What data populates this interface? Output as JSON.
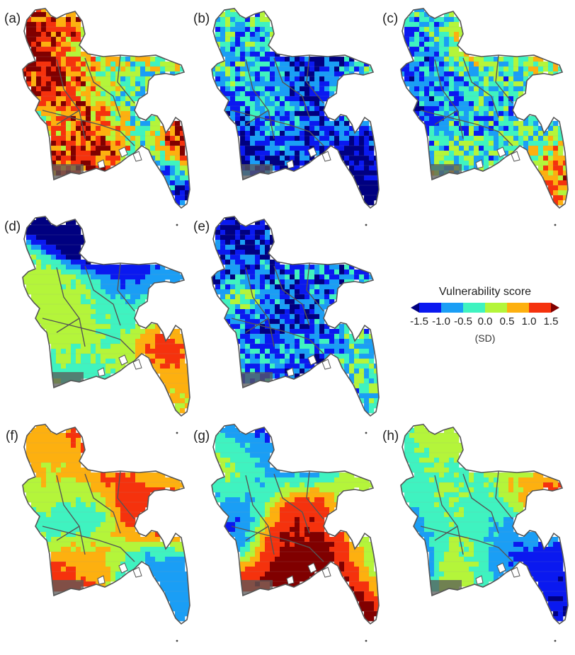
{
  "panels": [
    {
      "label": "(a)",
      "seed": 11,
      "mode": "fine",
      "bias": 0.6
    },
    {
      "label": "(b)",
      "seed": 23,
      "mode": "fine",
      "bias": -0.7
    },
    {
      "label": "(c)",
      "seed": 37,
      "mode": "fine",
      "bias": 0.0
    },
    {
      "label": "(d)",
      "seed": 41,
      "mode": "coarse",
      "bias": 0.0
    },
    {
      "label": "(e)",
      "seed": 53,
      "mode": "fine",
      "bias": -0.3
    },
    {
      "label": "(f)",
      "seed": 61,
      "mode": "coarse",
      "bias": 0.4
    },
    {
      "label": "(g)",
      "seed": 73,
      "mode": "coarse",
      "bias": 0.1
    },
    {
      "label": "(h)",
      "seed": 89,
      "mode": "coarse",
      "bias": -0.2
    }
  ],
  "legend": {
    "title": "Vulnerability score",
    "unit": "(SD)",
    "ticks": [
      "-1.5",
      "-1.0",
      "-0.5",
      "0.0",
      "0.5",
      "1.0",
      "1.5"
    ],
    "colors": [
      "#000080",
      "#0a19f0",
      "#1a9ef5",
      "#3ff3c0",
      "#b4f53a",
      "#fdb00f",
      "#f5320d",
      "#800000"
    ]
  },
  "style": {
    "border_color": "#555555",
    "water_color": "#ffffff"
  }
}
